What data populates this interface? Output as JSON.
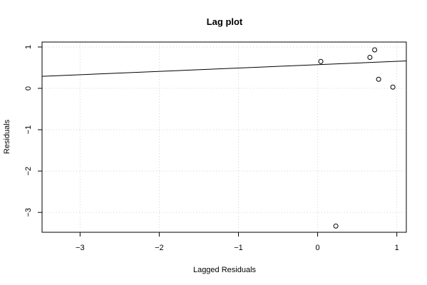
{
  "chart_data": {
    "type": "scatter",
    "title": "Lag plot",
    "xlabel": "Lagged Residuals",
    "ylabel": "Residuals",
    "xlim": [
      -3.48,
      1.12
    ],
    "ylim": [
      -3.48,
      1.12
    ],
    "xticks": [
      {
        "value": -3,
        "label": "−3"
      },
      {
        "value": -2,
        "label": "−2"
      },
      {
        "value": -1,
        "label": "−1"
      },
      {
        "value": 0,
        "label": "0"
      },
      {
        "value": 1,
        "label": "1"
      }
    ],
    "yticks": [
      {
        "value": -3,
        "label": "−3"
      },
      {
        "value": -2,
        "label": "−2"
      },
      {
        "value": -1,
        "label": "−1"
      },
      {
        "value": 0,
        "label": "0"
      },
      {
        "value": 1,
        "label": "1"
      }
    ],
    "grid": true,
    "points": [
      {
        "x": 0.04,
        "y": 0.65
      },
      {
        "x": 0.66,
        "y": 0.75
      },
      {
        "x": 0.72,
        "y": 0.93
      },
      {
        "x": 0.77,
        "y": 0.22
      },
      {
        "x": 0.95,
        "y": 0.03
      },
      {
        "x": 0.23,
        "y": -3.33
      }
    ],
    "regression_line": {
      "intercept": 0.572,
      "slope": 0.0807
    },
    "colors": {
      "points": "#000000",
      "line": "#000000",
      "grid": "#d3d3d3",
      "axes": "#000000"
    }
  }
}
